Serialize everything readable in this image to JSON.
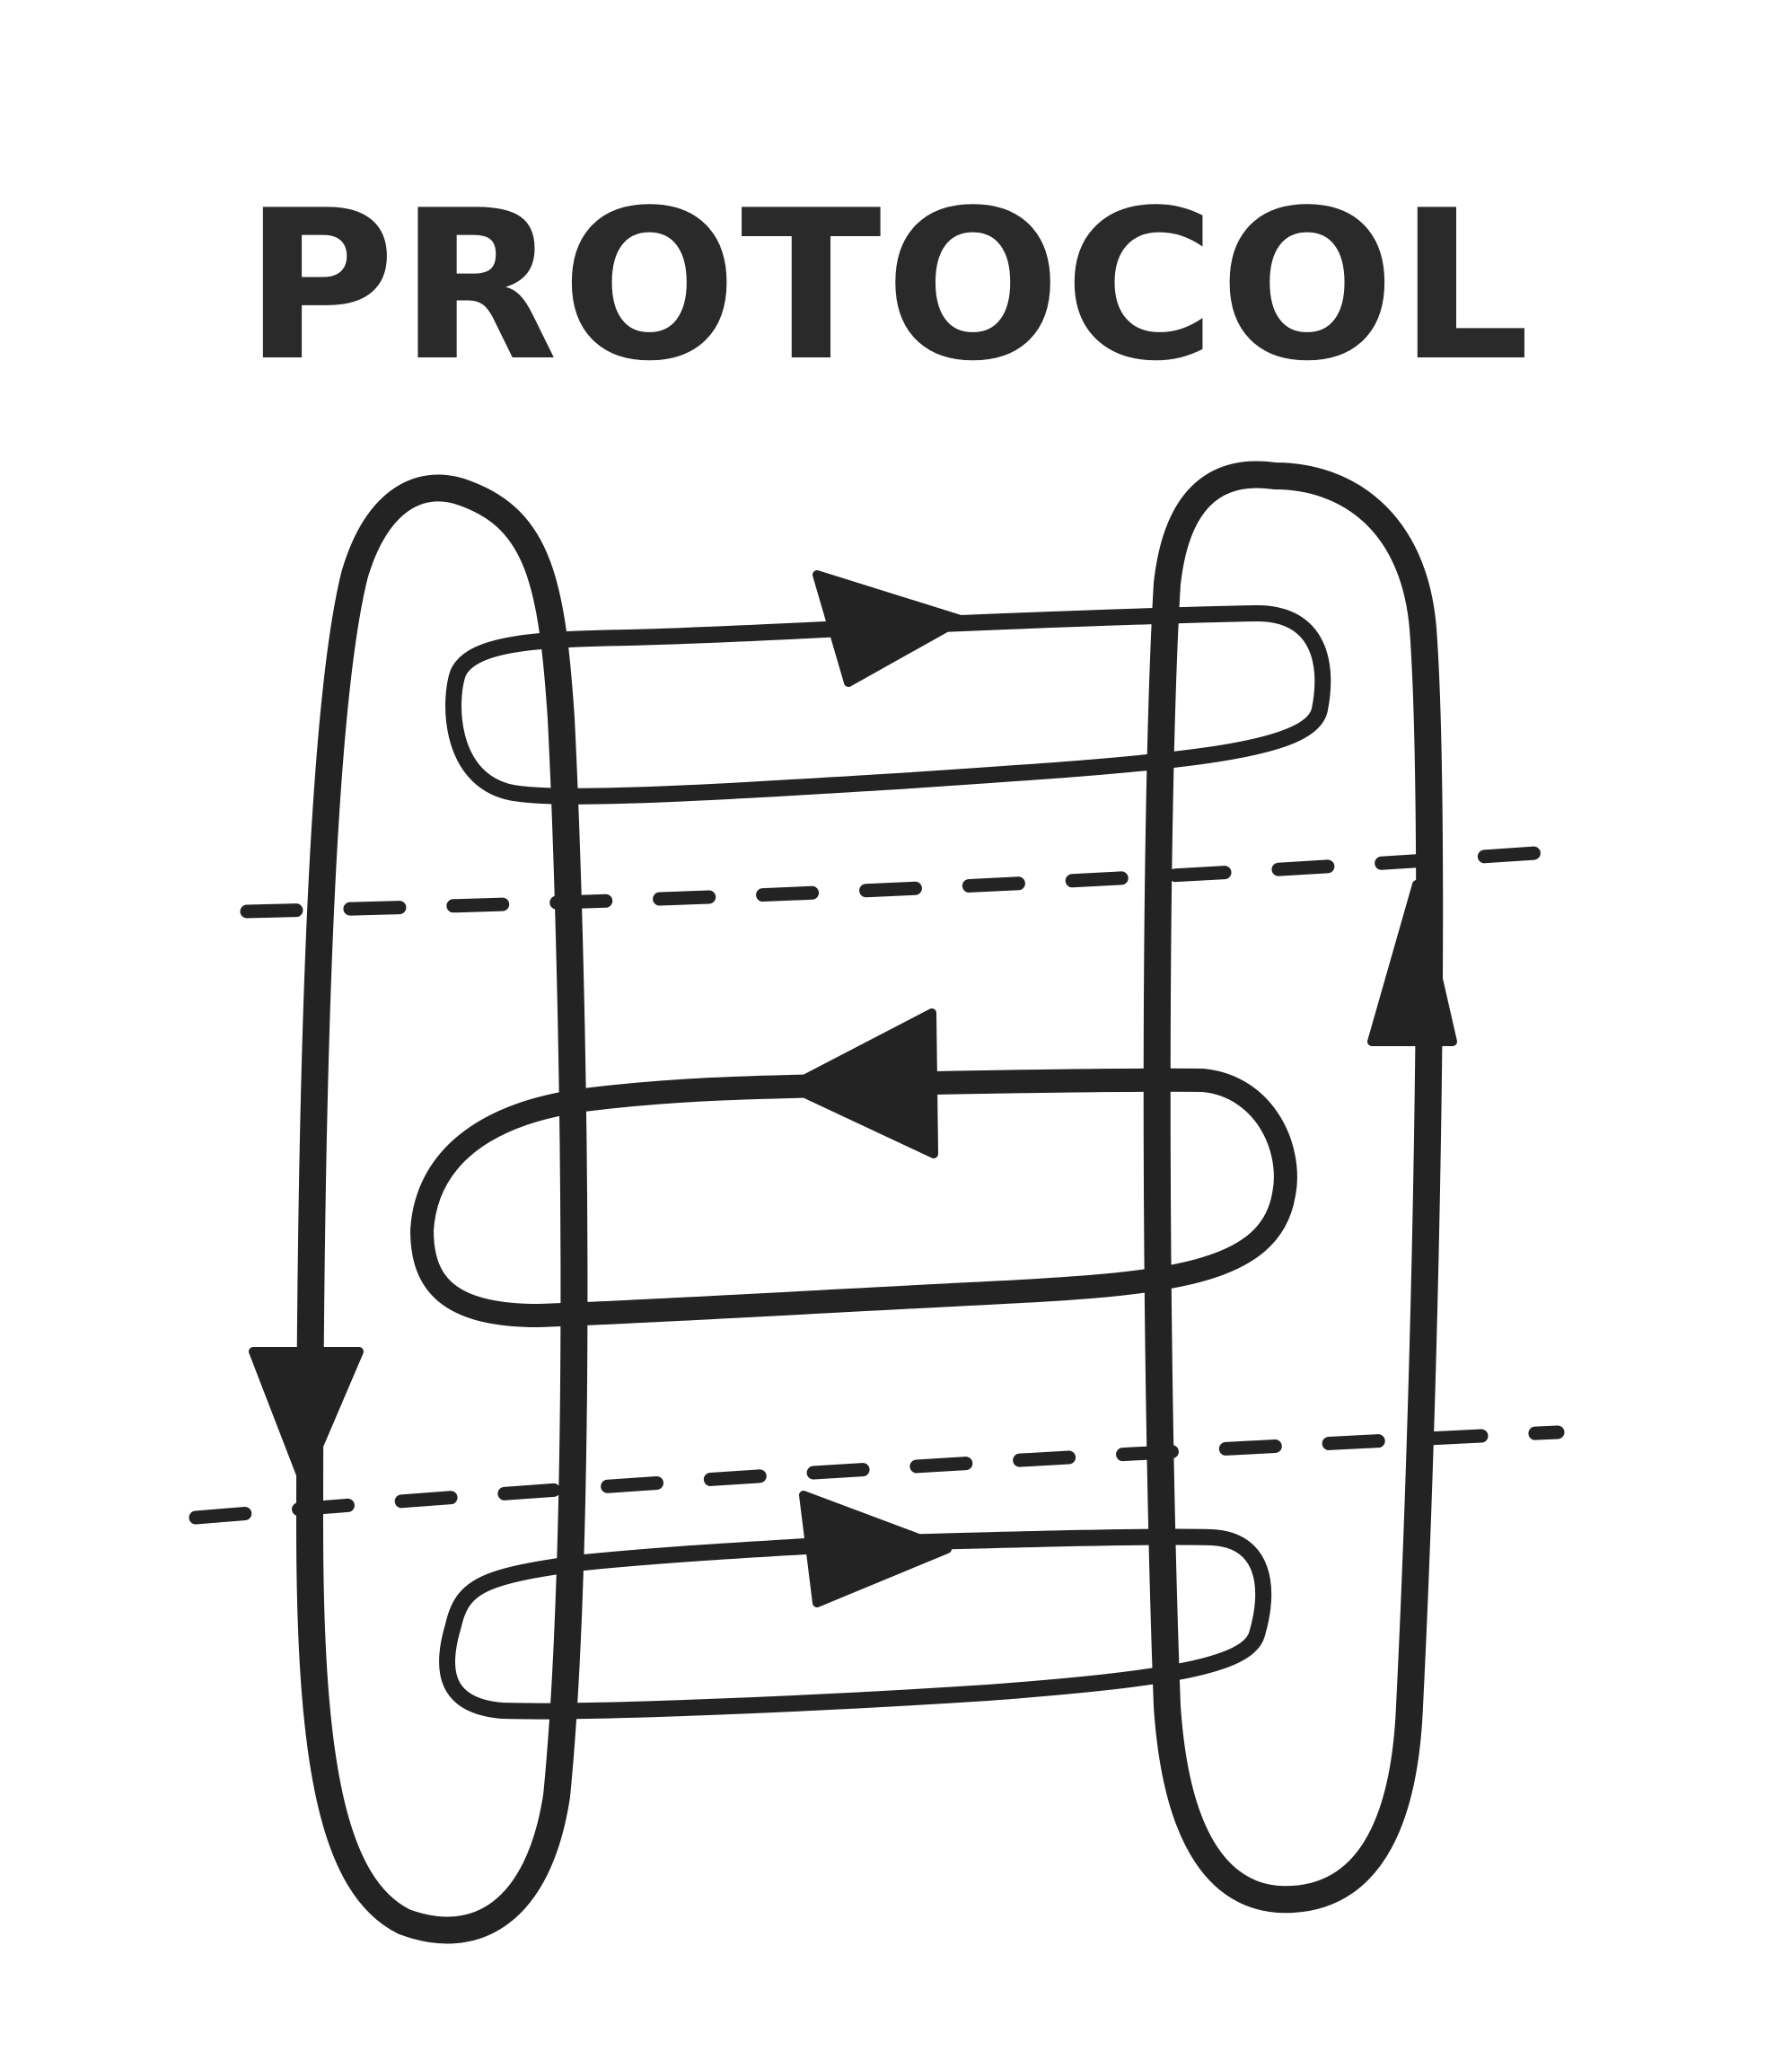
{
  "diagram": {
    "title": "PROTOCOL",
    "ink_color": "#232323",
    "background_color": "#ffffff",
    "lanes": [
      {
        "name": "left-loop",
        "direction": "down"
      },
      {
        "name": "right-loop",
        "direction": "up"
      }
    ],
    "messages": [
      {
        "name": "message-1",
        "direction": "right"
      },
      {
        "name": "message-2",
        "direction": "left"
      },
      {
        "name": "message-3",
        "direction": "right"
      }
    ],
    "separators": 2
  }
}
